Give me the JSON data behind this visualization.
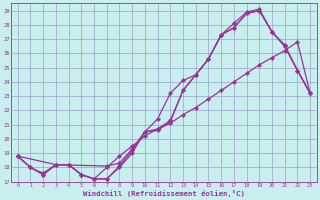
{
  "xlabel": "Windchill (Refroidissement éolien,°C)",
  "bg_color": "#c8eeee",
  "grid_color": "#9090c0",
  "line_color": "#993399",
  "xlim": [
    -0.5,
    23.5
  ],
  "ylim": [
    17.0,
    29.5
  ],
  "xticks": [
    0,
    1,
    2,
    3,
    4,
    5,
    6,
    7,
    8,
    9,
    10,
    11,
    12,
    13,
    14,
    15,
    16,
    17,
    18,
    19,
    20,
    21,
    22,
    23
  ],
  "yticks": [
    17,
    18,
    19,
    20,
    21,
    22,
    23,
    24,
    25,
    26,
    27,
    28,
    29
  ],
  "line1_x": [
    0,
    1,
    2,
    3,
    4,
    5,
    6,
    7,
    8,
    9,
    10,
    11,
    12,
    13,
    14,
    15,
    16,
    17,
    18,
    19,
    20,
    21,
    22,
    23
  ],
  "line1_y": [
    18.8,
    18.0,
    17.5,
    18.2,
    18.2,
    17.5,
    17.2,
    17.2,
    18.0,
    19.0,
    20.5,
    21.4,
    23.2,
    24.1,
    24.5,
    25.6,
    27.3,
    27.8,
    28.8,
    29.0,
    27.5,
    26.5,
    24.8,
    23.2
  ],
  "line2_x": [
    0,
    1,
    2,
    3,
    4,
    5,
    6,
    7,
    8,
    9,
    10,
    11,
    12,
    13,
    14,
    15,
    16,
    17,
    18,
    19,
    20,
    21,
    22,
    23
  ],
  "line2_y": [
    18.8,
    18.0,
    17.5,
    18.2,
    18.2,
    17.5,
    17.2,
    17.2,
    18.1,
    19.2,
    20.5,
    20.6,
    21.2,
    23.4,
    24.5,
    25.6,
    27.3,
    27.8,
    28.8,
    29.0,
    27.5,
    26.5,
    24.8,
    23.2
  ],
  "line3_x": [
    0,
    3,
    7,
    8,
    9,
    10,
    11,
    12,
    13,
    14,
    15,
    16,
    17,
    18,
    19,
    20,
    21,
    22,
    23
  ],
  "line3_y": [
    18.8,
    18.2,
    18.1,
    18.3,
    19.3,
    20.5,
    20.7,
    21.3,
    23.4,
    24.5,
    25.6,
    27.3,
    28.1,
    28.9,
    29.1,
    27.5,
    26.6,
    24.8,
    23.2
  ],
  "line4_x": [
    0,
    1,
    2,
    3,
    4,
    5,
    6,
    7,
    8,
    9,
    10,
    11,
    12,
    13,
    14,
    15,
    16,
    17,
    18,
    19,
    20,
    21,
    22,
    23
  ],
  "line4_y": [
    18.8,
    18.0,
    17.6,
    18.2,
    18.2,
    17.5,
    17.2,
    18.0,
    18.8,
    19.5,
    20.2,
    20.7,
    21.1,
    21.7,
    22.2,
    22.8,
    23.4,
    24.0,
    24.6,
    25.2,
    25.7,
    26.2,
    26.8,
    23.2
  ]
}
